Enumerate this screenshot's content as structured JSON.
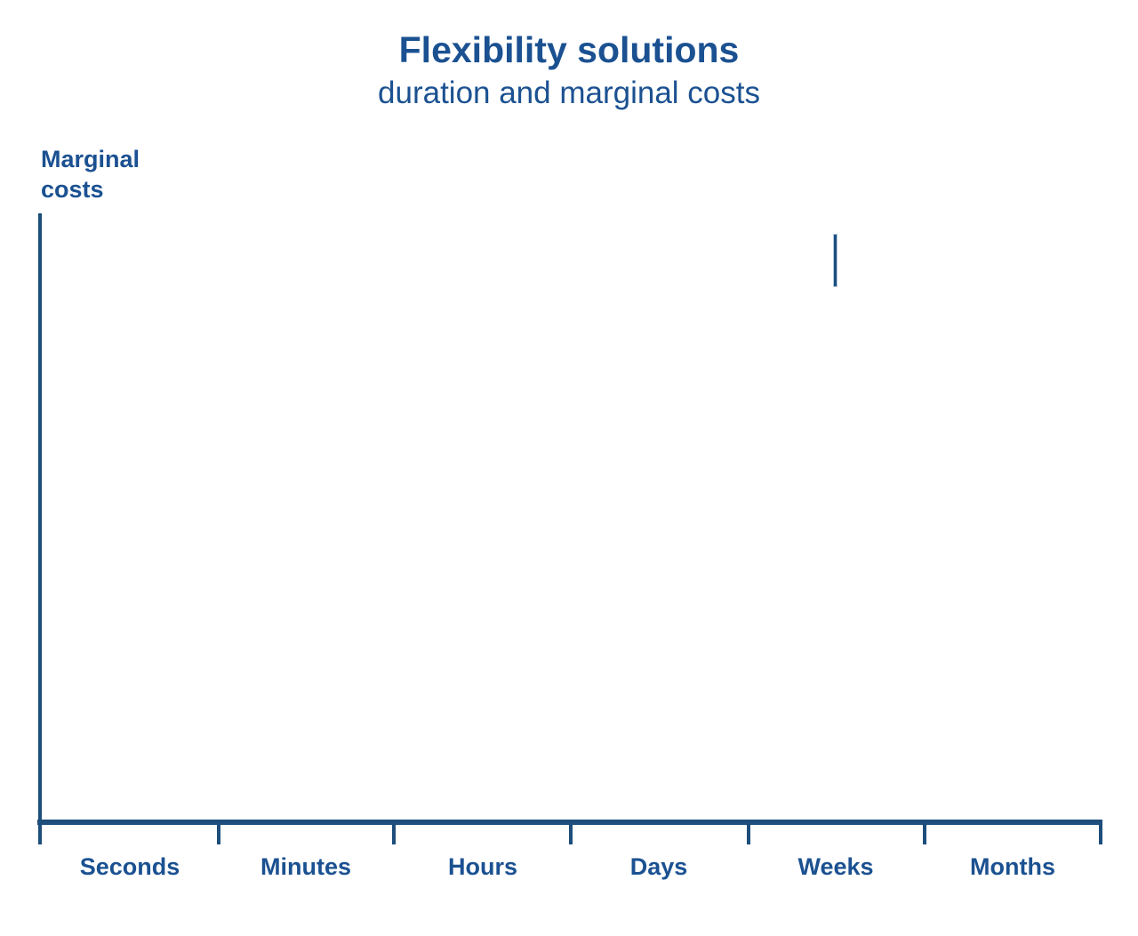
{
  "header": {
    "title": "Flexibility solutions",
    "subtitle": "duration and marginal costs"
  },
  "colors": {
    "text_blue": "#1b5191",
    "axis_blue": "#1d4e7c",
    "background": "#ffffff"
  },
  "chart_data": {
    "type": "line",
    "title": "Flexibility solutions",
    "subtitle": "duration and marginal costs",
    "xlabel": "",
    "ylabel": "Marginal costs",
    "categories": [
      "Seconds",
      "Minutes",
      "Hours",
      "Days",
      "Weeks",
      "Months"
    ],
    "series": [],
    "grid": false,
    "legend": "none",
    "axis_ticks_shown": 7,
    "y_tick_labels": [],
    "annotations": [
      {
        "shape": "vertical-line-segment",
        "x_category": "Weeks",
        "description": "short vertical stroke in upper plot area above Weeks; curve only partially drawn, plot otherwise empty"
      }
    ]
  }
}
